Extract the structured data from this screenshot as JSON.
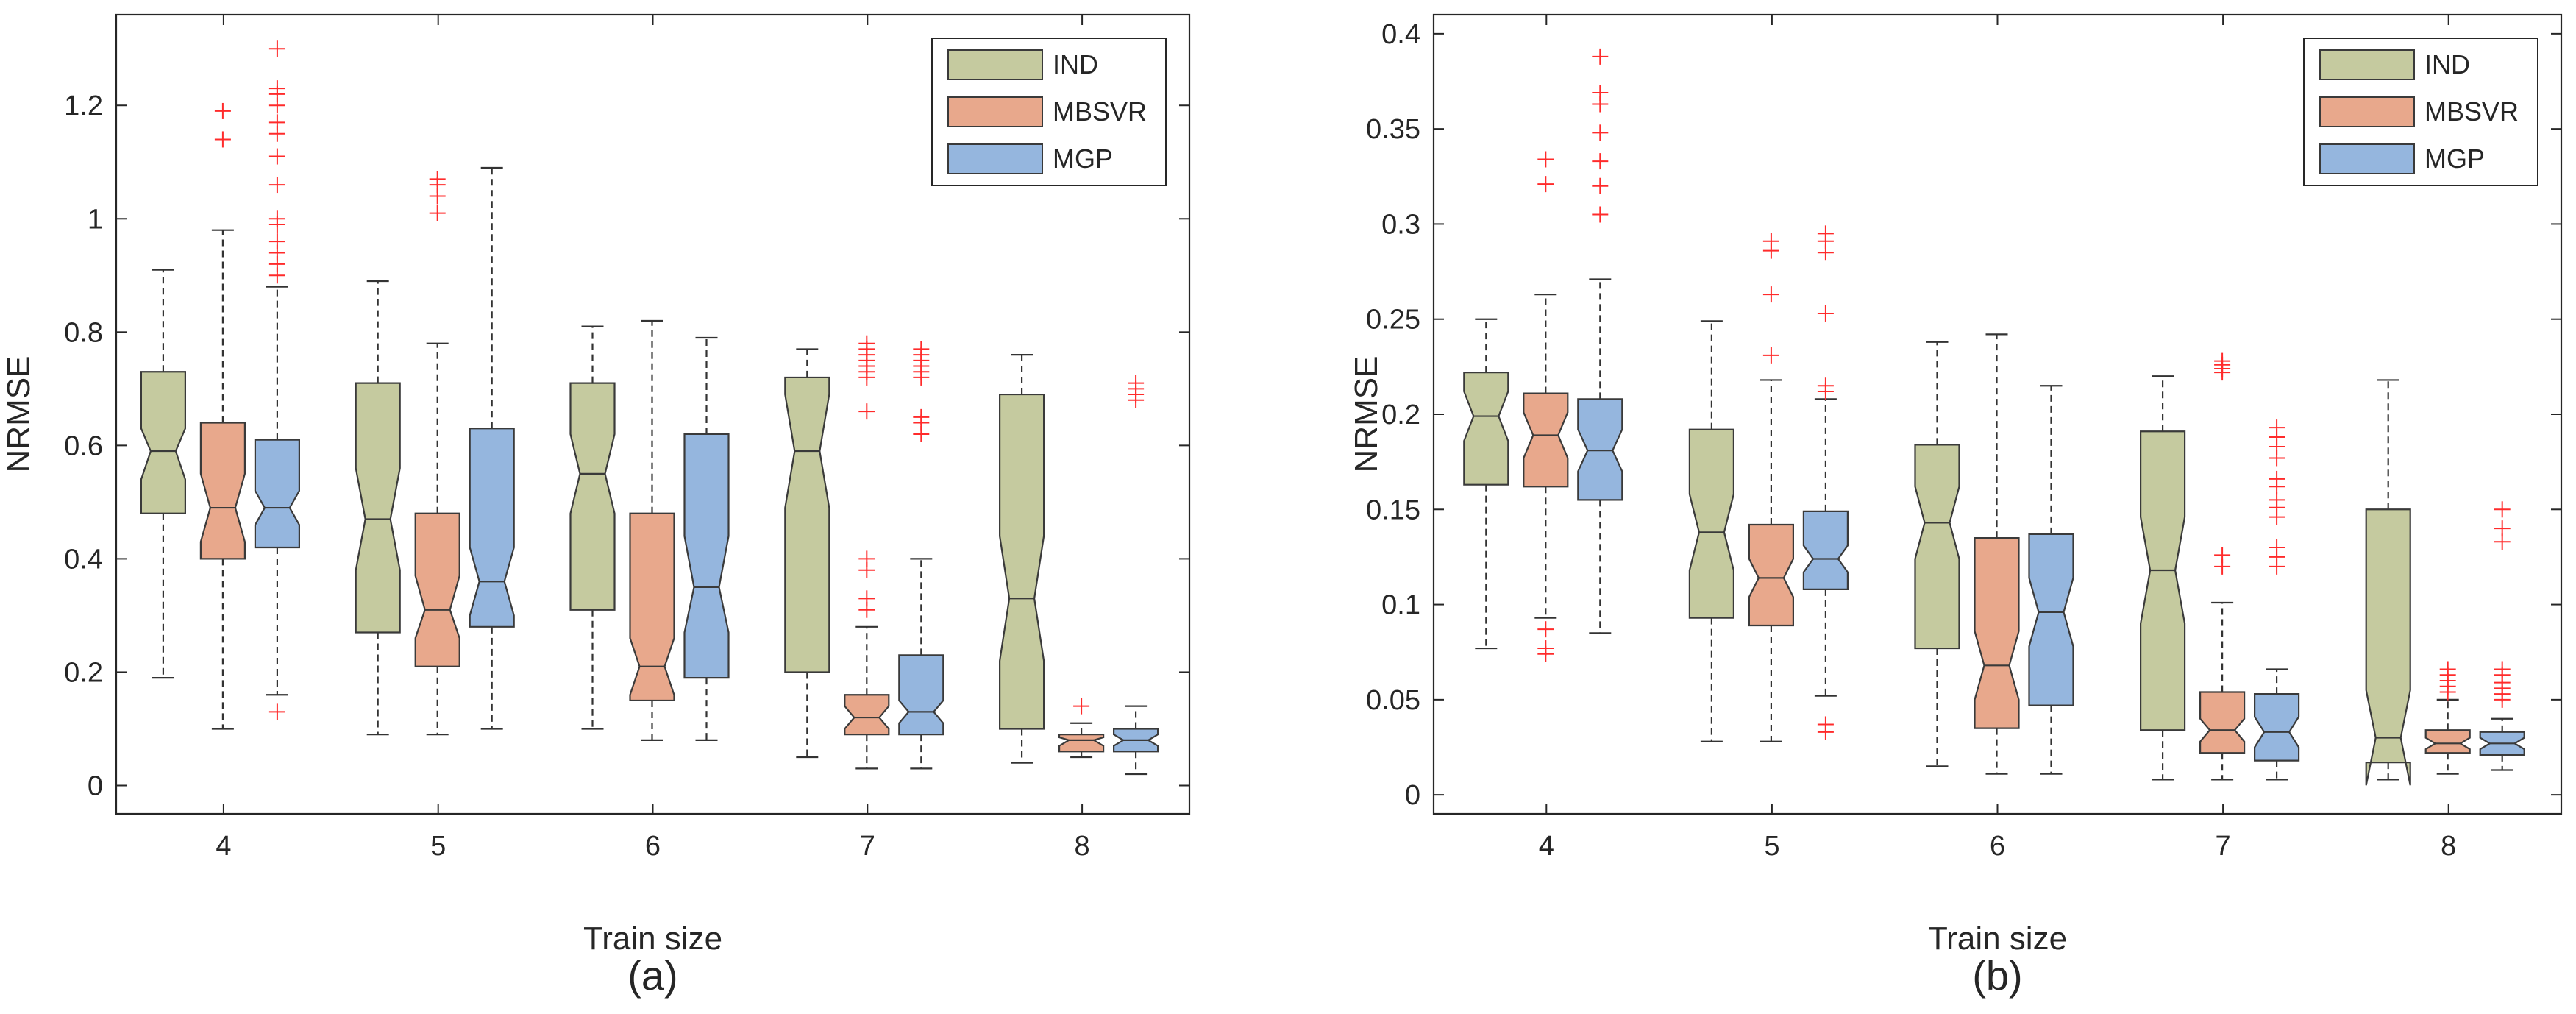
{
  "colors": {
    "IND": "#c5ca9f",
    "MBSVR": "#e8a88c",
    "MGP": "#95b6de",
    "outlier": "#ff2b2b",
    "axis": "#262626",
    "whisker": "#333333"
  },
  "chart_data": [
    {
      "type": "box",
      "panel_label": "(a)",
      "xlabel": "Train size",
      "ylabel": "NRMSE",
      "categories": [
        "4",
        "5",
        "6",
        "7",
        "8"
      ],
      "ylim": [
        -0.05,
        1.36
      ],
      "yticks": [
        0,
        0.2,
        0.4,
        0.6,
        0.8,
        1,
        1.2
      ],
      "ytick_labels": [
        "0",
        "0.2",
        "0.4",
        "0.6",
        "0.8",
        "1",
        "1.2"
      ],
      "legend": {
        "position": "top-right",
        "entries": [
          "IND",
          "MBSVR",
          "MGP"
        ]
      },
      "grid": false,
      "notched": true,
      "series": [
        {
          "name": "IND",
          "boxes": [
            {
              "whisker_low": 0.19,
              "q1": 0.48,
              "median": 0.59,
              "q3": 0.73,
              "whisker_high": 0.91,
              "notch_low": 0.54,
              "notch_high": 0.63,
              "outliers": []
            },
            {
              "whisker_low": 0.09,
              "q1": 0.27,
              "median": 0.47,
              "q3": 0.71,
              "whisker_high": 0.89,
              "notch_low": 0.38,
              "notch_high": 0.56,
              "outliers": []
            },
            {
              "whisker_low": 0.1,
              "q1": 0.31,
              "median": 0.55,
              "q3": 0.71,
              "whisker_high": 0.81,
              "notch_low": 0.48,
              "notch_high": 0.62,
              "outliers": []
            },
            {
              "whisker_low": 0.05,
              "q1": 0.2,
              "median": 0.59,
              "q3": 0.72,
              "whisker_high": 0.77,
              "notch_low": 0.49,
              "notch_high": 0.69,
              "outliers": []
            },
            {
              "whisker_low": 0.04,
              "q1": 0.1,
              "median": 0.33,
              "q3": 0.69,
              "whisker_high": 0.76,
              "notch_low": 0.22,
              "notch_high": 0.44,
              "outliers": []
            }
          ]
        },
        {
          "name": "MBSVR",
          "boxes": [
            {
              "whisker_low": 0.1,
              "q1": 0.4,
              "median": 0.49,
              "q3": 0.64,
              "whisker_high": 0.98,
              "notch_low": 0.43,
              "notch_high": 0.55,
              "outliers": [
                1.14,
                1.19
              ]
            },
            {
              "whisker_low": 0.09,
              "q1": 0.21,
              "median": 0.31,
              "q3": 0.48,
              "whisker_high": 0.78,
              "notch_low": 0.26,
              "notch_high": 0.37,
              "outliers": [
                1.01,
                1.04,
                1.06,
                1.07
              ]
            },
            {
              "whisker_low": 0.08,
              "q1": 0.15,
              "median": 0.21,
              "q3": 0.48,
              "whisker_high": 0.82,
              "notch_low": 0.16,
              "notch_high": 0.26,
              "outliers": []
            },
            {
              "whisker_low": 0.03,
              "q1": 0.09,
              "median": 0.12,
              "q3": 0.16,
              "whisker_high": 0.28,
              "notch_low": 0.1,
              "notch_high": 0.14,
              "outliers": [
                0.31,
                0.33,
                0.38,
                0.4,
                0.66,
                0.72,
                0.73,
                0.74,
                0.75,
                0.76,
                0.77,
                0.78
              ]
            },
            {
              "whisker_low": 0.05,
              "q1": 0.06,
              "median": 0.08,
              "q3": 0.09,
              "whisker_high": 0.11,
              "notch_low": 0.07,
              "notch_high": 0.085,
              "outliers": [
                0.14
              ]
            }
          ]
        },
        {
          "name": "MGP",
          "boxes": [
            {
              "whisker_low": 0.16,
              "q1": 0.42,
              "median": 0.49,
              "q3": 0.61,
              "whisker_high": 0.88,
              "notch_low": 0.46,
              "notch_high": 0.52,
              "outliers": [
                0.13,
                0.9,
                0.92,
                0.94,
                0.96,
                0.99,
                1.0,
                1.06,
                1.11,
                1.15,
                1.17,
                1.2,
                1.22,
                1.23,
                1.3
              ]
            },
            {
              "whisker_low": 0.1,
              "q1": 0.28,
              "median": 0.36,
              "q3": 0.63,
              "whisker_high": 1.09,
              "notch_low": 0.3,
              "notch_high": 0.42,
              "outliers": []
            },
            {
              "whisker_low": 0.08,
              "q1": 0.19,
              "median": 0.35,
              "q3": 0.62,
              "whisker_high": 0.79,
              "notch_low": 0.27,
              "notch_high": 0.44,
              "outliers": []
            },
            {
              "whisker_low": 0.03,
              "q1": 0.09,
              "median": 0.13,
              "q3": 0.23,
              "whisker_high": 0.4,
              "notch_low": 0.11,
              "notch_high": 0.15,
              "outliers": [
                0.62,
                0.64,
                0.65,
                0.72,
                0.73,
                0.74,
                0.75,
                0.76,
                0.77
              ]
            },
            {
              "whisker_low": 0.02,
              "q1": 0.06,
              "median": 0.08,
              "q3": 0.1,
              "whisker_high": 0.14,
              "notch_low": 0.07,
              "notch_high": 0.09,
              "outliers": [
                0.68,
                0.69,
                0.7,
                0.71
              ]
            }
          ]
        }
      ]
    },
    {
      "type": "box",
      "panel_label": "(b)",
      "xlabel": "Train size",
      "ylabel": "NRMSE",
      "categories": [
        "4",
        "5",
        "6",
        "7",
        "8"
      ],
      "ylim": [
        -0.01,
        0.41
      ],
      "yticks": [
        0,
        0.05,
        0.1,
        0.15,
        0.2,
        0.25,
        0.3,
        0.35,
        0.4
      ],
      "ytick_labels": [
        "0",
        "0.05",
        "0.1",
        "0.15",
        "0.2",
        "0.25",
        "0.3",
        "0.35",
        "0.4"
      ],
      "legend": {
        "position": "top-right",
        "entries": [
          "IND",
          "MBSVR",
          "MGP"
        ]
      },
      "grid": false,
      "notched": true,
      "series": [
        {
          "name": "IND",
          "boxes": [
            {
              "whisker_low": 0.077,
              "q1": 0.163,
              "median": 0.199,
              "q3": 0.222,
              "whisker_high": 0.25,
              "notch_low": 0.186,
              "notch_high": 0.212,
              "outliers": []
            },
            {
              "whisker_low": 0.028,
              "q1": 0.093,
              "median": 0.138,
              "q3": 0.192,
              "whisker_high": 0.249,
              "notch_low": 0.118,
              "notch_high": 0.158,
              "outliers": []
            },
            {
              "whisker_low": 0.015,
              "q1": 0.077,
              "median": 0.143,
              "q3": 0.184,
              "whisker_high": 0.238,
              "notch_low": 0.124,
              "notch_high": 0.162,
              "outliers": []
            },
            {
              "whisker_low": 0.008,
              "q1": 0.034,
              "median": 0.118,
              "q3": 0.191,
              "whisker_high": 0.22,
              "notch_low": 0.09,
              "notch_high": 0.146,
              "outliers": []
            },
            {
              "whisker_low": 0.008,
              "q1": 0.017,
              "median": 0.03,
              "q3": 0.15,
              "whisker_high": 0.218,
              "notch_low": 0.005,
              "notch_high": 0.055,
              "outliers": []
            }
          ]
        },
        {
          "name": "MBSVR",
          "boxes": [
            {
              "whisker_low": 0.093,
              "q1": 0.162,
              "median": 0.189,
              "q3": 0.211,
              "whisker_high": 0.263,
              "notch_low": 0.177,
              "notch_high": 0.201,
              "outliers": [
                0.074,
                0.077,
                0.087,
                0.321,
                0.334
              ]
            },
            {
              "whisker_low": 0.028,
              "q1": 0.089,
              "median": 0.114,
              "q3": 0.142,
              "whisker_high": 0.218,
              "notch_low": 0.104,
              "notch_high": 0.124,
              "outliers": [
                0.231,
                0.263,
                0.286,
                0.291
              ]
            },
            {
              "whisker_low": 0.011,
              "q1": 0.035,
              "median": 0.068,
              "q3": 0.135,
              "whisker_high": 0.242,
              "notch_low": 0.05,
              "notch_high": 0.086,
              "outliers": []
            },
            {
              "whisker_low": 0.008,
              "q1": 0.022,
              "median": 0.034,
              "q3": 0.054,
              "whisker_high": 0.101,
              "notch_low": 0.028,
              "notch_high": 0.04,
              "outliers": [
                0.12,
                0.126,
                0.222,
                0.224,
                0.226,
                0.228
              ]
            },
            {
              "whisker_low": 0.011,
              "q1": 0.022,
              "median": 0.027,
              "q3": 0.034,
              "whisker_high": 0.05,
              "notch_low": 0.024,
              "notch_high": 0.03,
              "outliers": [
                0.054,
                0.057,
                0.06,
                0.063,
                0.066
              ]
            }
          ]
        },
        {
          "name": "MGP",
          "boxes": [
            {
              "whisker_low": 0.085,
              "q1": 0.155,
              "median": 0.181,
              "q3": 0.208,
              "whisker_high": 0.271,
              "notch_low": 0.17,
              "notch_high": 0.192,
              "outliers": [
                0.305,
                0.32,
                0.333,
                0.348,
                0.363,
                0.369,
                0.388
              ]
            },
            {
              "whisker_low": 0.052,
              "q1": 0.108,
              "median": 0.124,
              "q3": 0.149,
              "whisker_high": 0.208,
              "notch_low": 0.117,
              "notch_high": 0.131,
              "outliers": [
                0.033,
                0.037,
                0.212,
                0.215,
                0.253,
                0.285,
                0.291,
                0.295
              ]
            },
            {
              "whisker_low": 0.011,
              "q1": 0.047,
              "median": 0.096,
              "q3": 0.137,
              "whisker_high": 0.215,
              "notch_low": 0.078,
              "notch_high": 0.114,
              "outliers": []
            },
            {
              "whisker_low": 0.008,
              "q1": 0.018,
              "median": 0.033,
              "q3": 0.053,
              "whisker_high": 0.066,
              "notch_low": 0.025,
              "notch_high": 0.041,
              "outliers": [
                0.12,
                0.125,
                0.13,
                0.146,
                0.151,
                0.155,
                0.162,
                0.166,
                0.177,
                0.183,
                0.188,
                0.193
              ]
            },
            {
              "whisker_low": 0.013,
              "q1": 0.021,
              "median": 0.027,
              "q3": 0.033,
              "whisker_high": 0.04,
              "notch_low": 0.024,
              "notch_high": 0.03,
              "outliers": [
                0.05,
                0.053,
                0.056,
                0.059,
                0.063,
                0.066,
                0.133,
                0.14,
                0.15
              ]
            }
          ]
        }
      ]
    }
  ]
}
